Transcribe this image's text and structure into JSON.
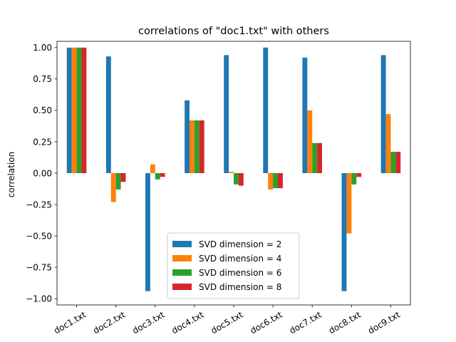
{
  "chart_data": {
    "type": "bar",
    "title": "correlations of \"doc1.txt\" with others",
    "xlabel": "",
    "ylabel": "correlation",
    "ylim": [
      -1.05,
      1.05
    ],
    "yticks": [
      -1.0,
      -0.75,
      -0.5,
      -0.25,
      0.0,
      0.25,
      0.5,
      0.75,
      1.0
    ],
    "ytick_labels": [
      "−1.00",
      "−0.75",
      "−0.50",
      "−0.25",
      "0.00",
      "0.25",
      "0.50",
      "0.75",
      "1.00"
    ],
    "grid": false,
    "legend_position": "lower-center",
    "categories": [
      "doc1.txt",
      "doc2.txt",
      "doc3.txt",
      "doc4.txt",
      "doc5.txt",
      "doc6.txt",
      "doc7.txt",
      "doc8.txt",
      "doc9.txt"
    ],
    "series": [
      {
        "name": "SVD dimension = 2",
        "color": "#1f77b4",
        "values": [
          1.0,
          0.93,
          -0.94,
          0.58,
          0.94,
          1.0,
          0.92,
          -0.94,
          0.94
        ]
      },
      {
        "name": "SVD dimension = 4",
        "color": "#ff7f0e",
        "values": [
          1.0,
          -0.23,
          0.07,
          0.42,
          0.01,
          -0.13,
          0.5,
          -0.48,
          0.47
        ]
      },
      {
        "name": "SVD dimension = 6",
        "color": "#2ca02c",
        "values": [
          1.0,
          -0.13,
          -0.05,
          0.42,
          -0.09,
          -0.12,
          0.24,
          -0.09,
          0.17
        ]
      },
      {
        "name": "SVD dimension = 8",
        "color": "#d62728",
        "values": [
          1.0,
          -0.07,
          -0.03,
          0.42,
          -0.1,
          -0.12,
          0.24,
          -0.03,
          0.17
        ]
      }
    ]
  }
}
